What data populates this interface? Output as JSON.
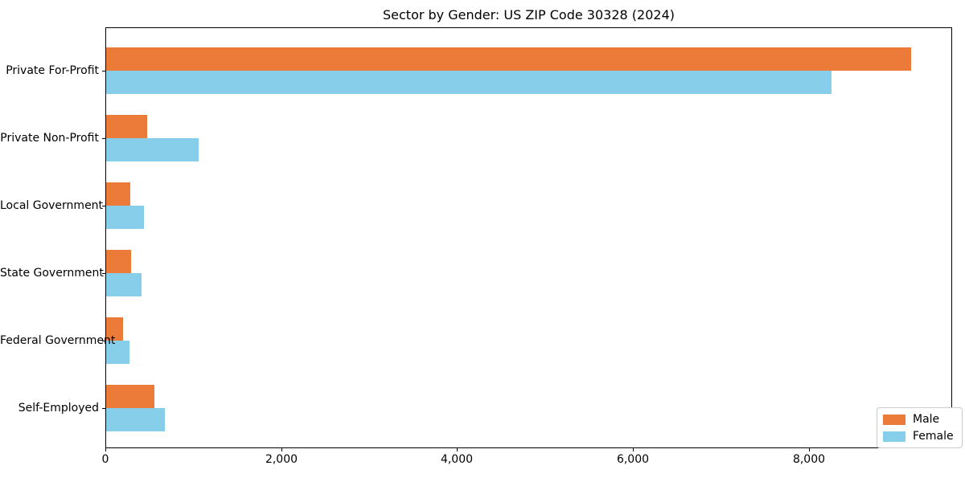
{
  "chart_data": {
    "type": "bar",
    "orientation": "horizontal",
    "title": "Sector by Gender: US ZIP Code 30328 (2024)",
    "xlabel": "",
    "ylabel": "",
    "categories": [
      "Private For-Profit",
      "Private Non-Profit",
      "Local Government",
      "State Government",
      "Federal Government",
      "Self-Employed"
    ],
    "series": [
      {
        "name": "Male",
        "color": "#EC7A39",
        "values": [
          9150,
          465,
          270,
          280,
          190,
          545
        ]
      },
      {
        "name": "Female",
        "color": "#87CEEB",
        "values": [
          8250,
          1055,
          430,
          400,
          265,
          665
        ]
      }
    ],
    "xlim": [
      0,
      9610
    ],
    "xticks": [
      0,
      2000,
      4000,
      6000,
      8000
    ],
    "xtick_labels": [
      "0",
      "2,000",
      "4,000",
      "6,000",
      "8,000"
    ],
    "legend_position": "lower right",
    "grid": false,
    "background_color": "#ffffff",
    "frame_color": "#000000"
  }
}
